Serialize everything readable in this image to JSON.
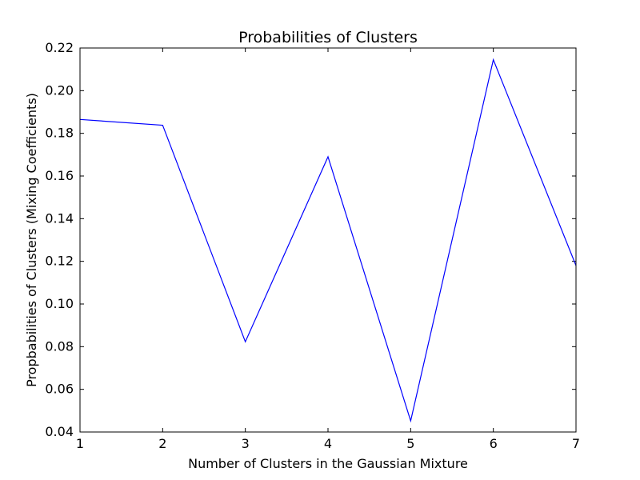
{
  "chart_data": {
    "type": "line",
    "title": "Probabilities of Clusters",
    "xlabel": "Number of Clusters in the Gaussian Mixture",
    "ylabel": "Propbabilities of Clusters (Mixing Coefficients)",
    "x": [
      1,
      2,
      3,
      4,
      5,
      6,
      7
    ],
    "series": [
      {
        "values": [
          0.1865,
          0.1838,
          0.0823,
          0.169,
          0.0452,
          0.2145,
          0.118
        ],
        "color": "#0000ff"
      }
    ],
    "xlim": [
      1,
      7
    ],
    "ylim": [
      0.04,
      0.22
    ],
    "x_ticks": [
      "1",
      "2",
      "3",
      "4",
      "5",
      "6",
      "7"
    ],
    "y_ticks": [
      "0.04",
      "0.06",
      "0.08",
      "0.10",
      "0.12",
      "0.14",
      "0.16",
      "0.18",
      "0.20",
      "0.22"
    ],
    "grid": false,
    "legend": "none"
  }
}
